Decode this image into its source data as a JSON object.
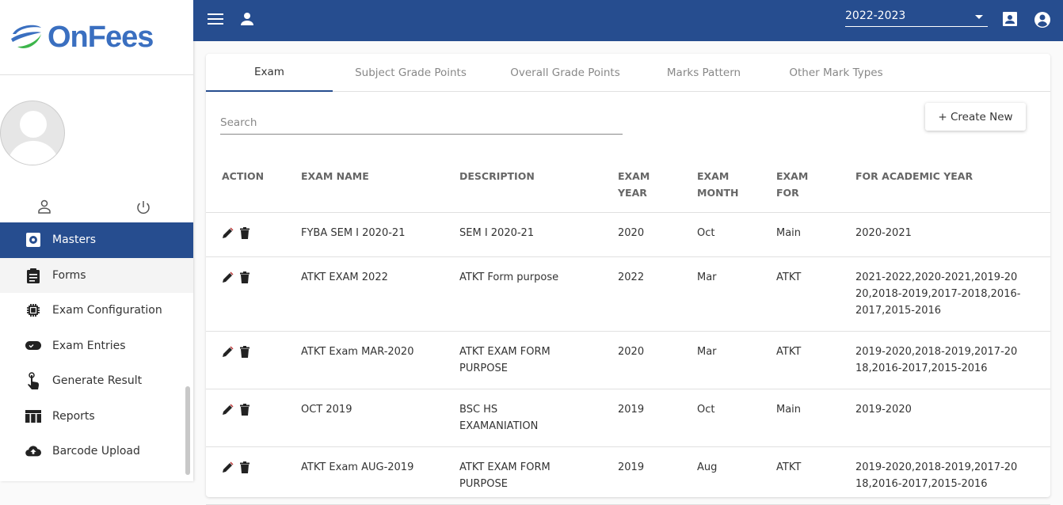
{
  "brand": {
    "name": "OnFees",
    "colors": {
      "primary": "#264d8f",
      "logo_blue": "#3a6fc0",
      "logo_green": "#3cb54a"
    }
  },
  "sidebar": {
    "items": [
      {
        "label": "Masters",
        "icon": "settings-icon",
        "active": true
      },
      {
        "label": "Forms",
        "icon": "clipboard-icon"
      },
      {
        "label": "Exam Configuration",
        "icon": "chip-icon"
      },
      {
        "label": "Exam Entries",
        "icon": "toggle-check-icon"
      },
      {
        "label": "Generate Result",
        "icon": "touch-icon"
      },
      {
        "label": "Reports",
        "icon": "table-icon"
      },
      {
        "label": "Barcode Upload",
        "icon": "cloud-upload-icon"
      }
    ]
  },
  "topbar": {
    "academic_year": "2022-2023"
  },
  "tabs": [
    "Exam",
    "Subject Grade Points",
    "Overall Grade Points",
    "Marks Pattern",
    "Other Mark Types"
  ],
  "search": {
    "placeholder": "Search"
  },
  "create_label": "+ Create New",
  "table": {
    "headers": [
      "ACTION",
      "EXAM NAME",
      "DESCRIPTION",
      "EXAM YEAR",
      "EXAM MONTH",
      "EXAM FOR",
      "FOR ACADEMIC YEAR"
    ],
    "rows": [
      [
        "FYBA SEM I 2020-21",
        "SEM I 2020-21",
        "2020",
        "Oct",
        "Main",
        "2020-2021"
      ],
      [
        "ATKT EXAM 2022",
        "ATKT Form purpose",
        "2022",
        "Mar",
        "ATKT",
        "2021-2022,2020-2021,2019-2020,2018-2019,2017-2018,2016-2017,2015-2016"
      ],
      [
        "ATKT Exam MAR-2020",
        "ATKT EXAM FORM PURPOSE",
        "2020",
        "Mar",
        "ATKT",
        "2019-2020,2018-2019,2017-2018,2016-2017,2015-2016"
      ],
      [
        "OCT 2019",
        "BSC HS EXAMANIATION",
        "2019",
        "Oct",
        "Main",
        "2019-2020"
      ],
      [
        "ATKT Exam AUG-2019",
        "ATKT EXAM FORM PURPOSE",
        "2019",
        "Aug",
        "ATKT",
        "2019-2020,2018-2019,2017-2018,2016-2017,2015-2016"
      ]
    ]
  }
}
